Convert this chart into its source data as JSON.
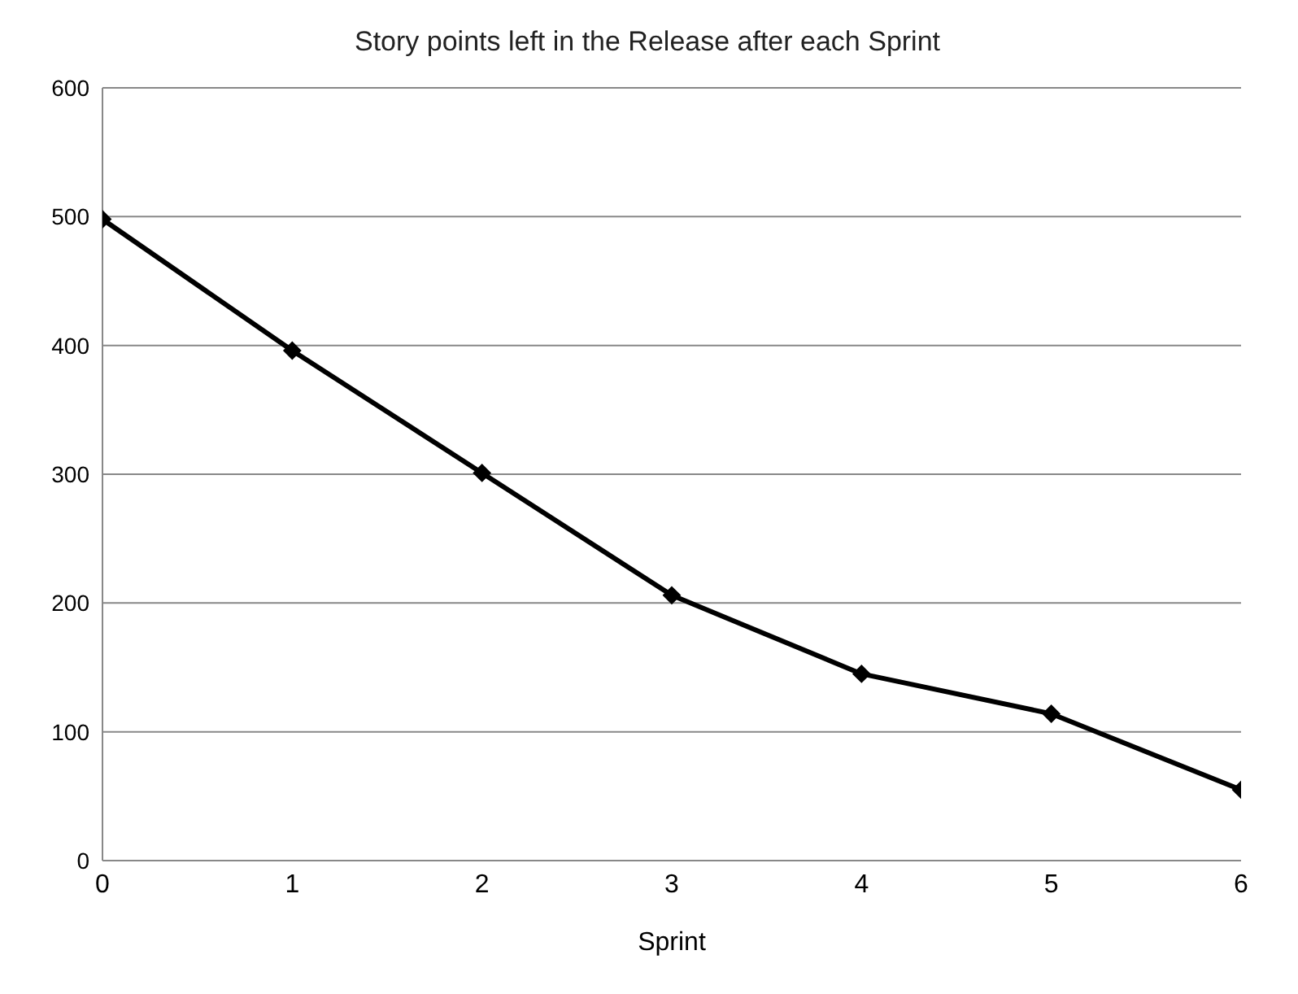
{
  "chart_data": {
    "type": "line",
    "title": "Story points left in the Release after each Sprint",
    "xlabel": "Sprint",
    "x": [
      0,
      1,
      2,
      3,
      4,
      5,
      6
    ],
    "series": [
      {
        "color": "#000000",
        "values": [
          498,
          396,
          301,
          206,
          145,
          114,
          55
        ]
      }
    ],
    "xlim": [
      0,
      6
    ],
    "xticks": [
      0,
      1,
      2,
      3,
      4,
      5,
      6
    ],
    "ylim": [
      0,
      600
    ],
    "yticks": [
      0,
      100,
      200,
      300,
      400,
      500,
      600
    ],
    "grid": "y",
    "marker": "diamond",
    "line_style": "solid"
  }
}
